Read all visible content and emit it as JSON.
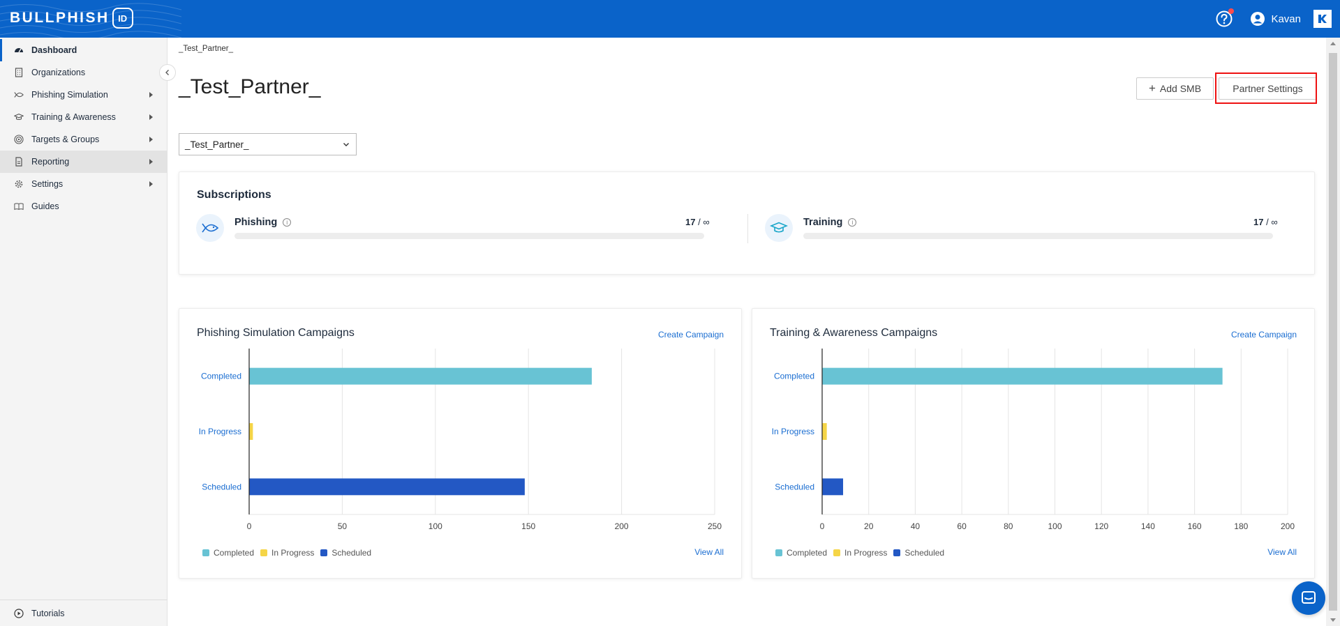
{
  "brand": {
    "name": "BULLPHISH",
    "badge": "ID",
    "primary_color": "#0a63c9"
  },
  "header": {
    "user_name": "Kavan",
    "notification_dot_color": "#ff4b4b"
  },
  "sidebar": {
    "items": [
      {
        "label": "Dashboard",
        "icon": "dashboard-icon",
        "active": true,
        "has_submenu": false
      },
      {
        "label": "Organizations",
        "icon": "building-icon",
        "active": false,
        "has_submenu": false
      },
      {
        "label": "Phishing Simulation",
        "icon": "fish-icon",
        "active": false,
        "has_submenu": true
      },
      {
        "label": "Training & Awareness",
        "icon": "graduation-cap-icon",
        "active": false,
        "has_submenu": true
      },
      {
        "label": "Targets & Groups",
        "icon": "target-icon",
        "active": false,
        "has_submenu": true
      },
      {
        "label": "Reporting",
        "icon": "report-icon",
        "active": false,
        "has_submenu": true,
        "hovered": true
      },
      {
        "label": "Settings",
        "icon": "gear-icon",
        "active": false,
        "has_submenu": true
      },
      {
        "label": "Guides",
        "icon": "book-icon",
        "active": false,
        "has_submenu": false
      }
    ],
    "footer_label": "Tutorials"
  },
  "main": {
    "breadcrumb": "_Test_Partner_",
    "title": "_Test_Partner_",
    "add_smb_label": "Add SMB",
    "partner_settings_label": "Partner Settings",
    "partner_select_value": "_Test_Partner_"
  },
  "subscriptions": {
    "title": "Subscriptions",
    "phishing": {
      "label": "Phishing",
      "used": "17",
      "limit": "/ ∞"
    },
    "training": {
      "label": "Training",
      "used": "17",
      "limit": "/ ∞"
    }
  },
  "phishing_chart": {
    "title": "Phishing Simulation Campaigns",
    "create_label": "Create Campaign",
    "view_all_label": "View All",
    "legend": [
      "Completed",
      "In Progress",
      "Scheduled"
    ]
  },
  "training_chart": {
    "title": "Training & Awareness Campaigns",
    "create_label": "Create Campaign",
    "view_all_label": "View All",
    "legend": [
      "Completed",
      "In Progress",
      "Scheduled"
    ]
  },
  "colors": {
    "completed": "#68c3d4",
    "in_progress": "#f5d547",
    "scheduled": "#2358c4"
  },
  "chart_data": [
    {
      "type": "bar",
      "orientation": "horizontal",
      "title": "Phishing Simulation Campaigns",
      "categories": [
        "Completed",
        "In Progress",
        "Scheduled"
      ],
      "values": [
        184,
        2,
        148
      ],
      "xticks": [
        0,
        50,
        100,
        150,
        200,
        250
      ],
      "xlim": [
        0,
        250
      ],
      "grid": true,
      "legend": "bottom-left"
    },
    {
      "type": "bar",
      "orientation": "horizontal",
      "title": "Training & Awareness Campaigns",
      "categories": [
        "Completed",
        "In Progress",
        "Scheduled"
      ],
      "values": [
        172,
        2,
        9
      ],
      "xticks": [
        0,
        20,
        40,
        60,
        80,
        100,
        120,
        140,
        160,
        180,
        200
      ],
      "xlim": [
        0,
        200
      ],
      "grid": true,
      "legend": "bottom-left"
    }
  ]
}
